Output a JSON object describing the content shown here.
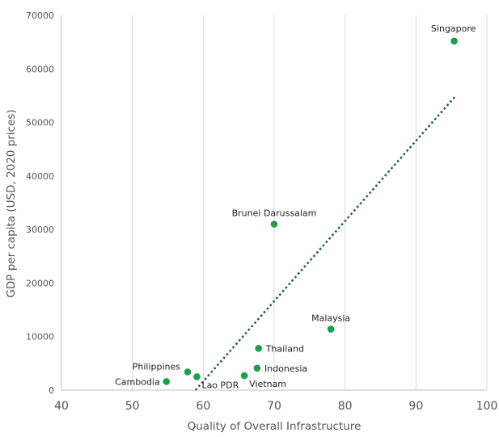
{
  "chart_data": {
    "type": "scatter",
    "title": "",
    "xlabel": "Quality of Overall Infrastructure",
    "ylabel": "GDP per capita (USD, 2020 prices)",
    "xlim": [
      40,
      100
    ],
    "ylim": [
      0,
      70000
    ],
    "xticks": [
      40,
      50,
      60,
      70,
      80,
      90,
      100
    ],
    "yticks": [
      0,
      10000,
      20000,
      30000,
      40000,
      50000,
      60000,
      70000
    ],
    "grid": "vertical",
    "point_color": "#1aa04a",
    "trendline": {
      "style": "dotted",
      "color": "#1f6b3a",
      "x": [
        58.9,
        95.5
      ],
      "y": [
        0,
        54800
      ]
    },
    "points": [
      {
        "label": "Singapore",
        "x": 95.4,
        "y": 65200,
        "label_pos": "above-left"
      },
      {
        "label": "Brunei Darussalam",
        "x": 70.0,
        "y": 31000,
        "label_pos": "above"
      },
      {
        "label": "Malaysia",
        "x": 78.0,
        "y": 11400,
        "label_pos": "above"
      },
      {
        "label": "Thailand",
        "x": 67.8,
        "y": 7800,
        "label_pos": "right"
      },
      {
        "label": "Indonesia",
        "x": 67.6,
        "y": 4100,
        "label_pos": "right"
      },
      {
        "label": "Vietnam",
        "x": 65.8,
        "y": 2700,
        "label_pos": "below-right"
      },
      {
        "label": "Philippines",
        "x": 57.8,
        "y": 3400,
        "label_pos": "left-up"
      },
      {
        "label": "Lao PDR",
        "x": 59.1,
        "y": 2500,
        "label_pos": "below-right"
      },
      {
        "label": "Cambodia",
        "x": 54.8,
        "y": 1600,
        "label_pos": "left"
      }
    ]
  }
}
